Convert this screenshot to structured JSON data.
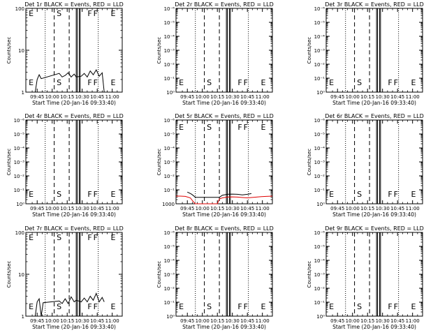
{
  "figure": {
    "x_tick_labels": [
      "09:45",
      "10:00",
      "10:15",
      "10:30",
      "10:45",
      "11:00"
    ],
    "x_title": "Start Time (20-Jan-16 09:33:40)",
    "y_title": "Counts/sec",
    "flare_letters": [
      "E",
      "S",
      "F",
      "F",
      "E"
    ]
  },
  "chart_data": [
    {
      "type": "line",
      "title": "Det 1r BLACK = Events, RED = LLD",
      "yscale": "log",
      "yticks": [
        "1",
        "10",
        "100"
      ],
      "ylim": [
        1,
        100
      ],
      "xlim": [
        "09:33:40",
        "11:10:00"
      ],
      "x_markers": {
        "dotted": [
          "09:53",
          "10:46"
        ],
        "dashed": [
          "10:02",
          "10:17"
        ],
        "solid": [
          "10:24",
          "10:25",
          "10:27",
          "10:28"
        ]
      },
      "series": [
        {
          "color": "black",
          "x": [
            "09:43",
            "09:45",
            "09:47",
            "09:49",
            "10:07",
            "10:10",
            "10:13",
            "10:16",
            "10:19",
            "10:22",
            "10:24",
            "10:29",
            "10:32",
            "10:35",
            "10:38",
            "10:41",
            "10:44",
            "10:47",
            "10:50",
            "10:52"
          ],
          "y": [
            1.0,
            2.0,
            2.6,
            2.1,
            2.8,
            2.3,
            2.5,
            2.9,
            2.3,
            2.7,
            2.3,
            2.4,
            2.8,
            2.3,
            3.2,
            2.6,
            3.4,
            2.4,
            2.9,
            1.0
          ]
        }
      ]
    },
    {
      "type": "line",
      "title": "Det 2r BLACK = Events, RED = LLD",
      "yscale": "log",
      "yticks": [
        "10⁰",
        "10⁻¹",
        "10⁻²",
        "10⁻³",
        "10⁻⁴",
        "10⁻⁵",
        "10⁻⁶"
      ],
      "ylim": [
        1,
        1e-06
      ],
      "xlim": [
        "09:33:40",
        "11:10:00"
      ],
      "x_markers": {
        "dotted": [
          "09:53",
          "10:46"
        ],
        "dashed": [
          "10:02",
          "10:17"
        ],
        "solid": [
          "10:24",
          "10:25",
          "10:27",
          "10:28"
        ]
      },
      "series": []
    },
    {
      "type": "line",
      "title": "Det 3r BLACK = Events, RED = LLD",
      "yscale": "log",
      "yticks": [
        "10⁰",
        "10⁻¹",
        "10⁻²",
        "10⁻³",
        "10⁻⁴",
        "10⁻⁵",
        "10⁻⁶"
      ],
      "ylim": [
        1,
        1e-06
      ],
      "xlim": [
        "09:33:40",
        "11:10:00"
      ],
      "x_markers": {
        "dotted": [
          "09:53",
          "10:46"
        ],
        "dashed": [
          "10:02",
          "10:17"
        ],
        "solid": [
          "10:24",
          "10:25",
          "10:27",
          "10:28"
        ]
      },
      "series": []
    },
    {
      "type": "line",
      "title": "Det 4r BLACK = Events, RED = LLD",
      "yscale": "log",
      "yticks": [
        "10⁰",
        "10⁻¹",
        "10⁻²",
        "10⁻³",
        "10⁻⁴",
        "10⁻⁵",
        "10⁻⁶"
      ],
      "ylim": [
        1,
        1e-06
      ],
      "xlim": [
        "09:33:40",
        "11:10:00"
      ],
      "x_markers": {
        "dotted": [
          "09:53",
          "10:46"
        ],
        "dashed": [
          "10:02",
          "10:17"
        ],
        "solid": [
          "10:24",
          "10:25",
          "10:27",
          "10:28"
        ]
      },
      "series": []
    },
    {
      "type": "line",
      "title": "Det 5r BLACK = Events, RED = LLD",
      "yscale": "log",
      "yticks": [
        "1000",
        "10⁻¹",
        "10⁻²",
        "10⁻³",
        "10⁻⁴",
        "10⁻⁵",
        "10⁻⁶"
      ],
      "ylim": [
        1000,
        1e-06
      ],
      "xlim": [
        "09:33:40",
        "11:10:00"
      ],
      "x_markers": {
        "dotted": [
          "09:53",
          "10:46"
        ],
        "dashed": [
          "10:02",
          "10:17"
        ],
        "solid": [
          "10:24",
          "10:25",
          "10:27",
          "10:28"
        ]
      },
      "series": [
        {
          "color": "red",
          "x": [
            "09:33",
            "09:38",
            "09:43",
            "09:48",
            "09:51",
            "09:53",
            "10:15",
            "10:17",
            "10:20",
            "10:25",
            "10:30",
            "10:35",
            "10:40",
            "10:45",
            "10:49",
            "10:54",
            "10:59",
            "11:04",
            "11:10"
          ],
          "y": [
            150,
            150,
            160,
            230,
            600,
            1000,
            1000,
            300,
            230,
            190,
            180,
            190,
            210,
            230,
            210,
            190,
            170,
            160,
            150
          ]
        },
        {
          "color": "black",
          "x": [
            "09:45",
            "09:47",
            "09:49",
            "09:51",
            "09:53",
            "10:17",
            "10:20",
            "10:25",
            "10:30",
            "10:35",
            "10:40",
            "10:45",
            "10:49"
          ],
          "y": [
            55,
            70,
            90,
            130,
            200,
            200,
            120,
            95,
            90,
            95,
            110,
            95,
            80
          ]
        }
      ]
    },
    {
      "type": "line",
      "title": "Det 6r BLACK = Events, RED = LLD",
      "yscale": "log",
      "yticks": [
        "10⁰",
        "10⁻¹",
        "10⁻²",
        "10⁻³",
        "10⁻⁴",
        "10⁻⁵",
        "10⁻⁶"
      ],
      "ylim": [
        1,
        1e-06
      ],
      "xlim": [
        "09:33:40",
        "11:10:00"
      ],
      "x_markers": {
        "dotted": [
          "09:53",
          "10:46"
        ],
        "dashed": [
          "10:02",
          "10:17"
        ],
        "solid": [
          "10:24",
          "10:25",
          "10:27",
          "10:28"
        ]
      },
      "series": []
    },
    {
      "type": "line",
      "title": "Det 7r BLACK = Events, RED = LLD",
      "yscale": "log",
      "yticks": [
        "1",
        "10",
        "100"
      ],
      "ylim": [
        1,
        100
      ],
      "xlim": [
        "09:33:40",
        "11:10:00"
      ],
      "x_markers": {
        "dotted": [
          "09:53",
          "10:46"
        ],
        "dashed": [
          "10:02",
          "10:17"
        ],
        "solid": [
          "10:24",
          "10:25",
          "10:27",
          "10:28"
        ]
      },
      "series": [
        {
          "color": "black",
          "x": [
            "09:43",
            "09:45",
            "09:47",
            "09:49",
            "09:51",
            "10:07",
            "10:10",
            "10:13",
            "10:16",
            "10:19",
            "10:22",
            "10:24",
            "10:29",
            "10:32",
            "10:35",
            "10:38",
            "10:41",
            "10:44",
            "10:47",
            "10:50",
            "10:52"
          ],
          "y": [
            1.0,
            2.2,
            2.6,
            1.0,
            2.1,
            2.3,
            2.0,
            2.6,
            2.0,
            2.9,
            2.2,
            2.4,
            2.2,
            2.7,
            2.2,
            3.0,
            2.4,
            3.5,
            2.2,
            2.8,
            2.2
          ]
        }
      ]
    },
    {
      "type": "line",
      "title": "Det 8r BLACK = Events, RED = LLD",
      "yscale": "log",
      "yticks": [
        "10⁰",
        "10⁻¹",
        "10⁻²",
        "10⁻³",
        "10⁻⁴",
        "10⁻⁵",
        "10⁻⁶"
      ],
      "ylim": [
        1,
        1e-06
      ],
      "xlim": [
        "09:33:40",
        "11:10:00"
      ],
      "x_markers": {
        "dotted": [
          "09:53",
          "10:46"
        ],
        "dashed": [
          "10:02",
          "10:17"
        ],
        "solid": [
          "10:24",
          "10:25",
          "10:27",
          "10:28"
        ]
      },
      "series": []
    },
    {
      "type": "line",
      "title": "Det 9r BLACK = Events, RED = LLD",
      "yscale": "log",
      "yticks": [
        "10⁰",
        "10⁻¹",
        "10⁻²",
        "10⁻³",
        "10⁻⁴",
        "10⁻⁵",
        "10⁻⁶"
      ],
      "ylim": [
        1,
        1e-06
      ],
      "xlim": [
        "09:33:40",
        "11:10:00"
      ],
      "x_markers": {
        "dotted": [
          "09:53",
          "10:46"
        ],
        "dashed": [
          "10:02",
          "10:17"
        ],
        "solid": [
          "10:24",
          "10:25",
          "10:27",
          "10:28"
        ]
      },
      "series": []
    }
  ]
}
